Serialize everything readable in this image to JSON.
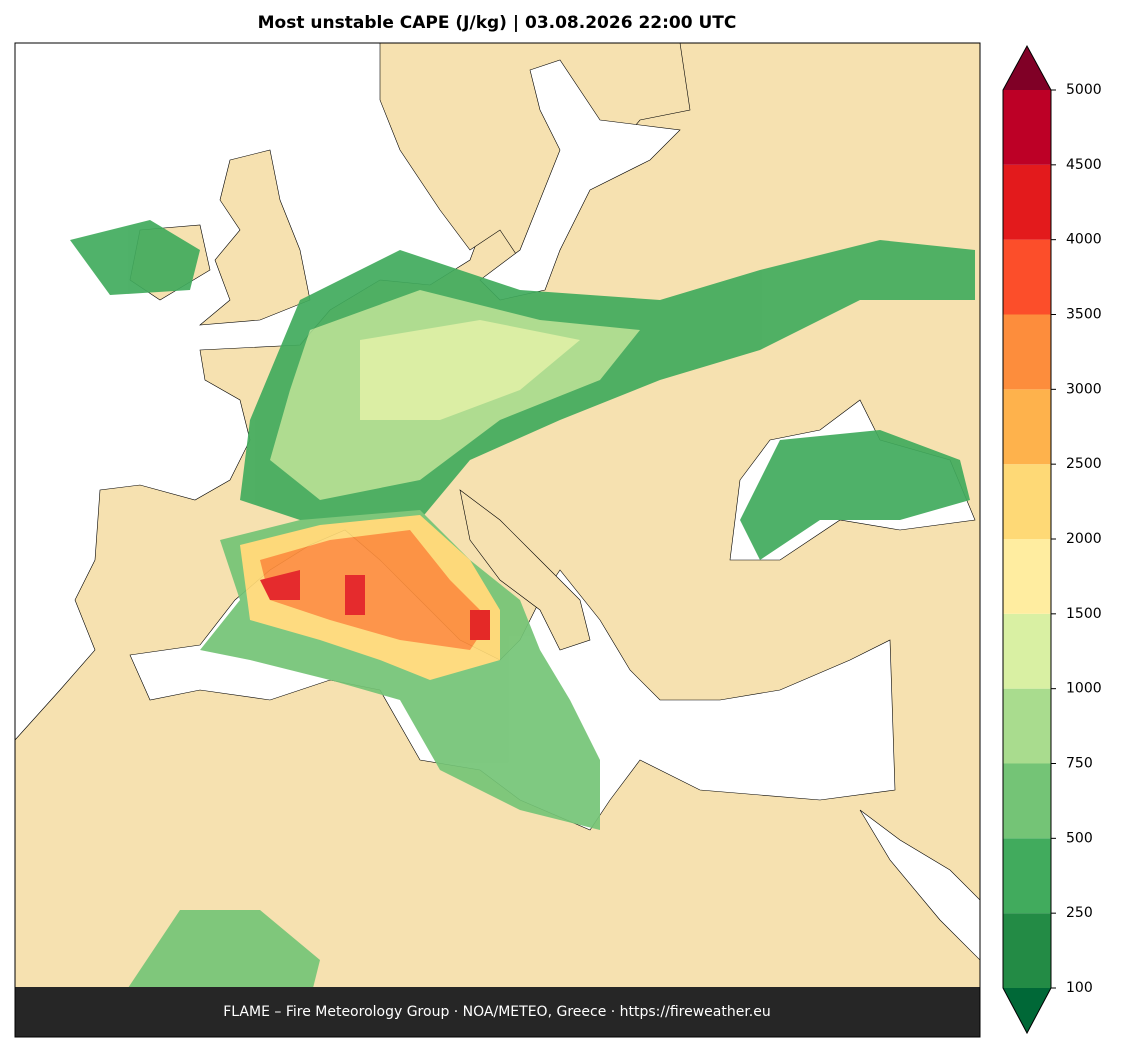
{
  "map": {
    "title": "Most unstable CAPE (J/kg)  |  03.08.2026 22:00 UTC",
    "footer": "FLAME – Fire Meteorology Group · NOA/METEO, Greece · https://fireweather.eu",
    "colorbar": {
      "levels": [
        100,
        250,
        500,
        750,
        1000,
        1500,
        2000,
        2500,
        3000,
        3500,
        4000,
        4500,
        5000
      ],
      "colors": [
        "#238b45",
        "#41ab5d",
        "#74c476",
        "#a9dc8e",
        "#d9f0a3",
        "#ffeda0",
        "#fed976",
        "#feb24c",
        "#fd8d3c",
        "#fc4e2a",
        "#e31a1c",
        "#bd0026"
      ],
      "under_color": "#006837",
      "over_color": "#800026"
    }
  }
}
